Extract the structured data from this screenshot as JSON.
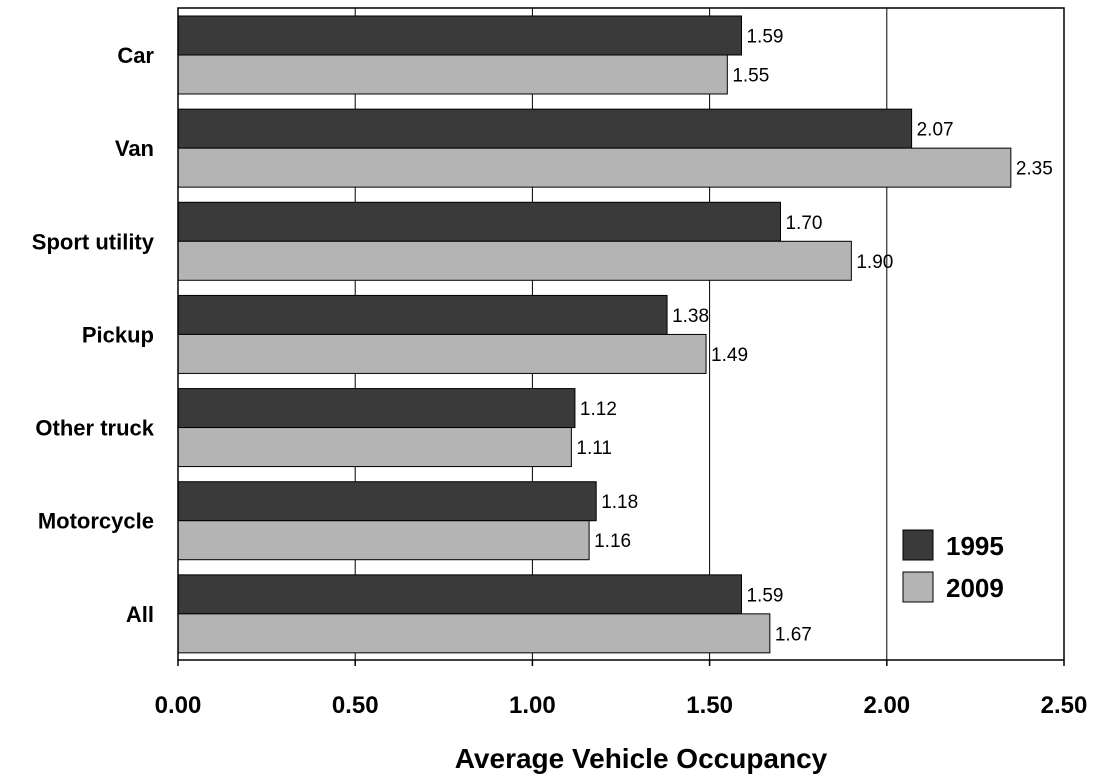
{
  "chart_data": {
    "type": "bar",
    "orientation": "horizontal",
    "categories": [
      "Car",
      "Van",
      "Sport utility",
      "Pickup",
      "Other truck",
      "Motorcycle",
      "All"
    ],
    "series": [
      {
        "name": "1995",
        "color": "#3a3a3a",
        "values": [
          1.59,
          2.07,
          1.7,
          1.38,
          1.12,
          1.18,
          1.59
        ],
        "labels": [
          "1.59",
          "2.07",
          "1.70",
          "1.38",
          "1.12",
          "1.18",
          "1.59"
        ]
      },
      {
        "name": "2009",
        "color": "#b4b4b4",
        "values": [
          1.55,
          2.35,
          1.9,
          1.49,
          1.11,
          1.16,
          1.67
        ],
        "labels": [
          "1.55",
          "2.35",
          "1.90",
          "1.49",
          "1.11",
          "1.16",
          "1.67"
        ]
      }
    ],
    "xlabel": "Average Vehicle Occupancy",
    "xlim": [
      0,
      2.5
    ],
    "xticks": [
      0,
      0.5,
      1.0,
      1.5,
      2.0,
      2.5
    ],
    "xtick_labels": [
      "0.00",
      "0.50",
      "1.00",
      "1.50",
      "2.00",
      "2.50"
    ],
    "grid": "vertical",
    "legend_position": "bottom-right"
  }
}
